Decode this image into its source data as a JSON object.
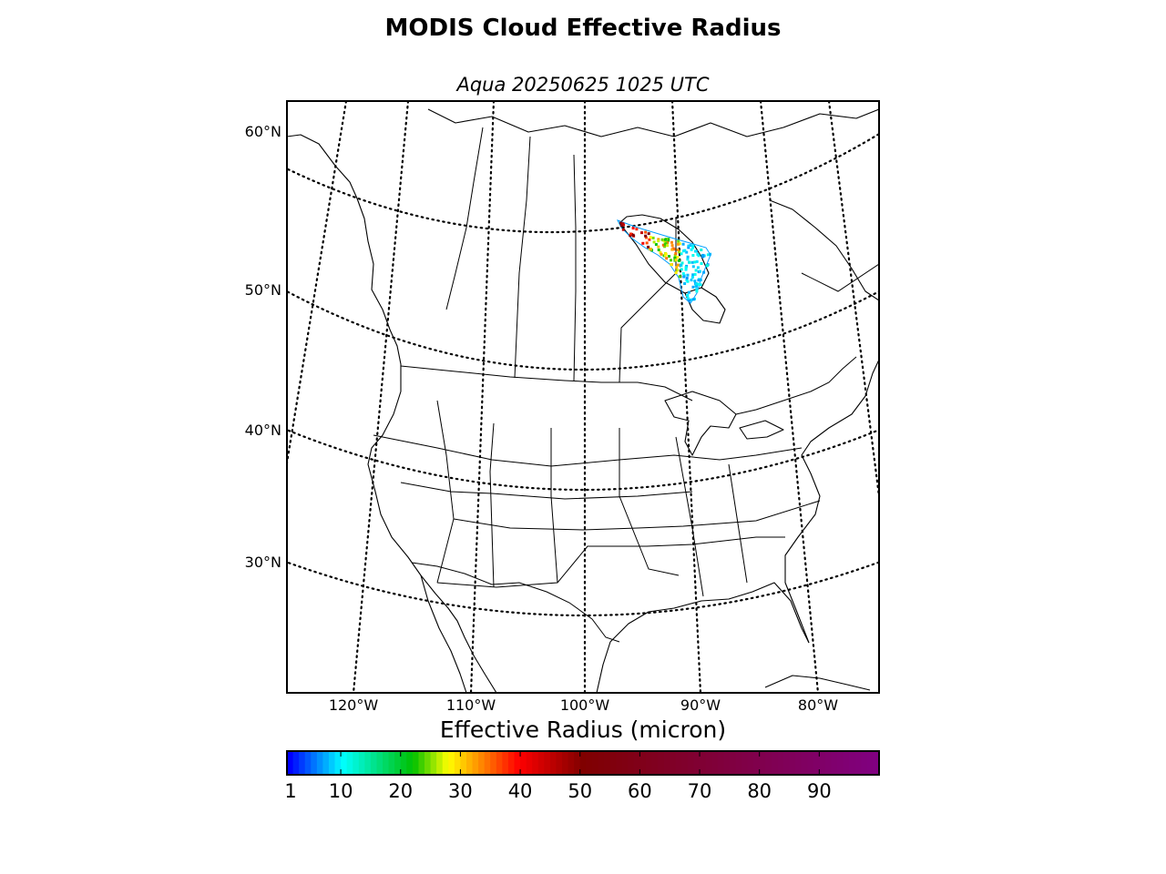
{
  "title": "MODIS Cloud Effective Radius",
  "subtitle": "Aqua 20250625 1025 UTC",
  "map": {
    "parallels": [
      {
        "label": "60°N"
      },
      {
        "label": "50°N"
      },
      {
        "label": "40°N"
      },
      {
        "label": "30°N"
      }
    ],
    "meridians": [
      {
        "label": "120°W"
      },
      {
        "label": "110°W"
      },
      {
        "label": "100°W"
      },
      {
        "label": "90°W"
      },
      {
        "label": "80°W"
      }
    ]
  },
  "colorbar": {
    "label": "Effective Radius (micron)",
    "range": [
      1,
      100
    ],
    "ticks": [
      "1",
      "10",
      "20",
      "30",
      "40",
      "50",
      "60",
      "70",
      "80",
      "90"
    ],
    "colormap": [
      "#0000ff",
      "#00ffff",
      "#00c000",
      "#ffff00",
      "#ff0000",
      "#800000",
      "#800080"
    ]
  }
}
